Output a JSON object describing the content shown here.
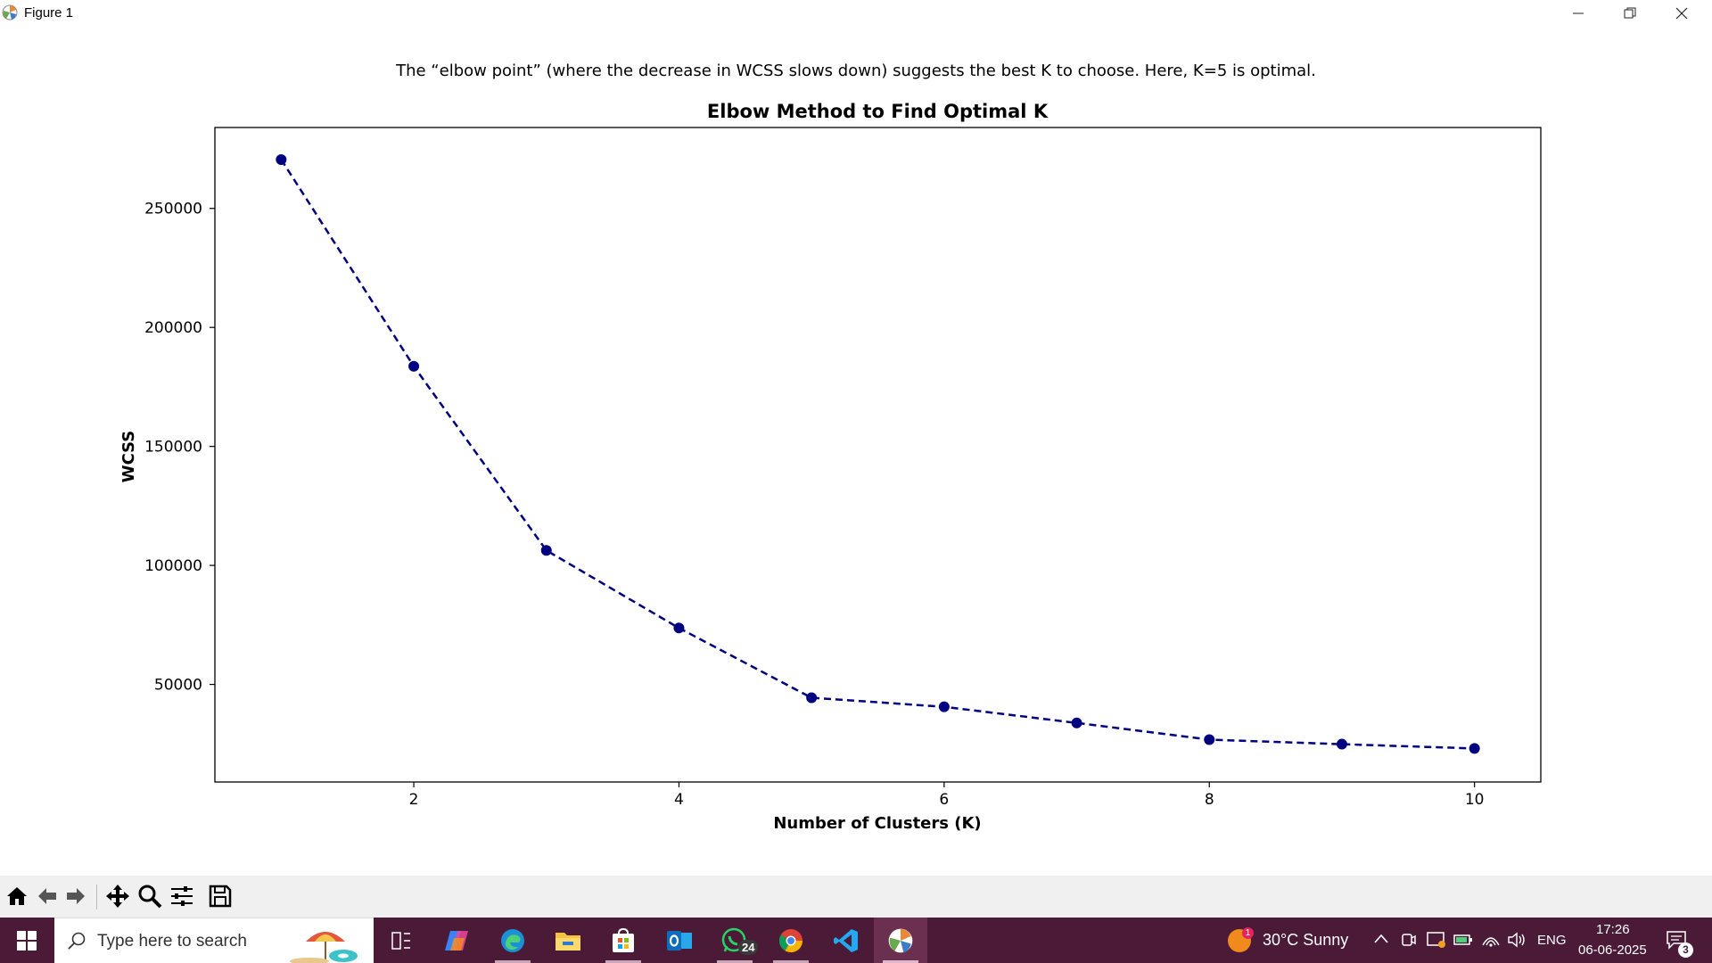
{
  "window": {
    "title": "Figure 1"
  },
  "figure": {
    "note": "The “elbow point” (where the decrease in WCSS slows down) suggests the best K to choose. Here, K=5 is optimal."
  },
  "chart_data": {
    "type": "line",
    "title": "Elbow Method to Find Optimal K",
    "xlabel": "Number of Clusters (K)",
    "ylabel": "WCSS",
    "x": [
      1,
      2,
      3,
      4,
      5,
      6,
      7,
      8,
      9,
      10
    ],
    "series": [
      {
        "values": [
          270500,
          183700,
          106300,
          73700,
          44400,
          40600,
          33800,
          26800,
          24900,
          23100
        ]
      }
    ],
    "xlim": [
      0.5,
      10.5
    ],
    "ylim": [
      9000,
      284000
    ],
    "xticks": [
      2,
      4,
      6,
      8,
      10
    ],
    "yticks": [
      50000,
      100000,
      150000,
      200000,
      250000
    ],
    "line_style": "dashed",
    "marker": "circle",
    "color": "#000080",
    "grid": false
  },
  "toolbar": {
    "icons": [
      "home-icon",
      "back-icon",
      "forward-icon",
      "pan-icon",
      "zoom-icon",
      "configure-icon",
      "save-icon"
    ]
  },
  "taskbar": {
    "search_placeholder": "Type here to search",
    "whatsapp_badge": "24",
    "weather": "30°C  Sunny",
    "weather_badge": "1",
    "language": "ENG",
    "time": "17:26",
    "date": "06-06-2025",
    "notification_count": "3"
  }
}
